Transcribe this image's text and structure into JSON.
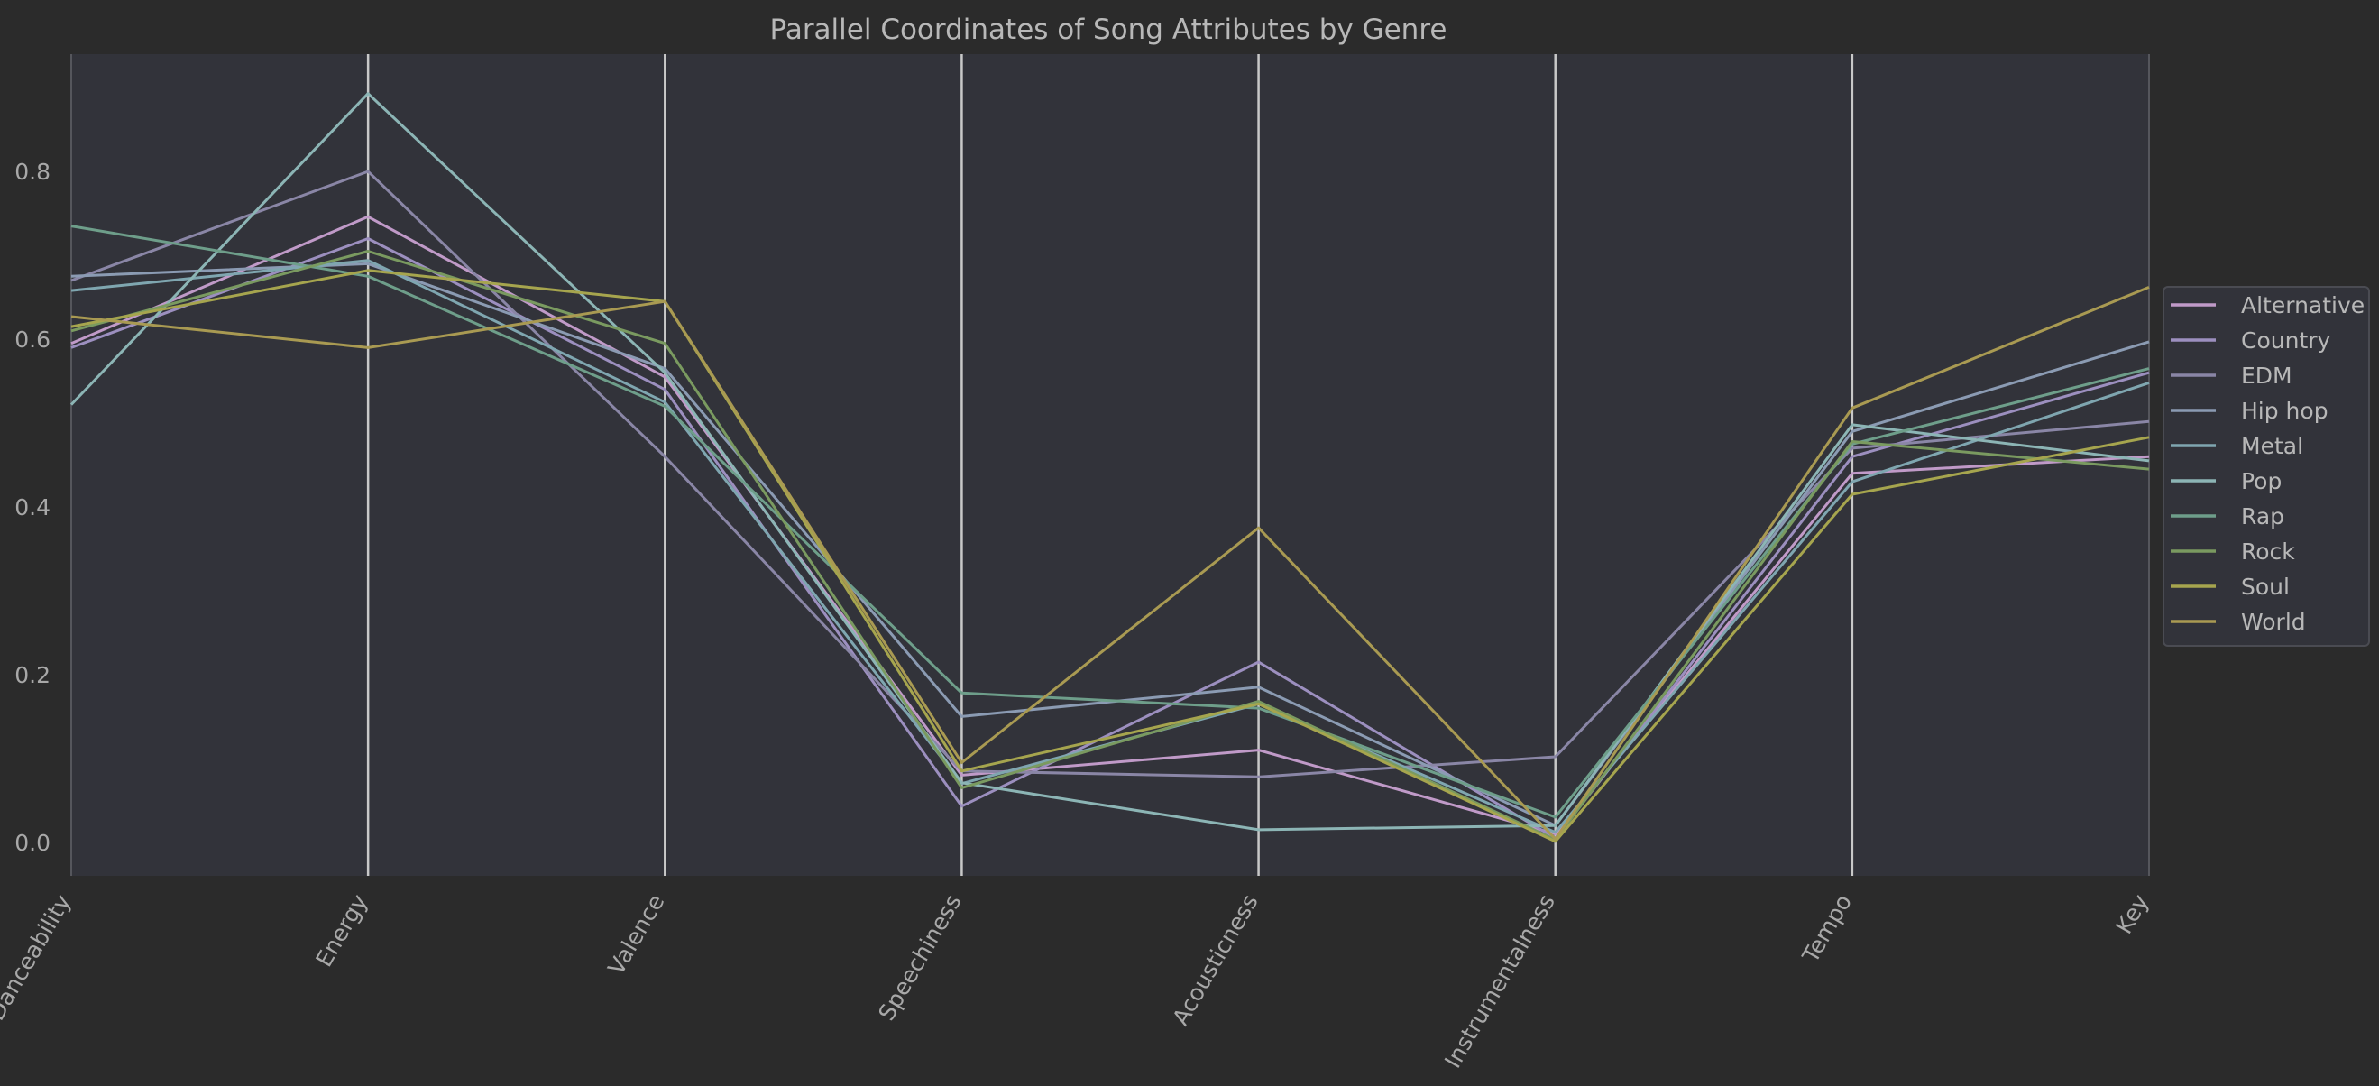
{
  "chart_data": {
    "type": "line",
    "title": "Parallel Coordinates of Song Attributes by Genre",
    "axes": [
      "Danceability",
      "Energy",
      "Valence",
      "Speechiness",
      "Acousticness",
      "Instrumentalness",
      "Tempo",
      "Key"
    ],
    "yticks": [
      "0.0",
      "0.2",
      "0.4",
      "0.6",
      "0.8"
    ],
    "ylim": [
      -0.04,
      0.94
    ],
    "grid": true,
    "legend_position": "right",
    "series": [
      {
        "name": "Alternative",
        "color": "#c09ac8",
        "values": [
          0.595,
          0.746,
          0.555,
          0.08,
          0.11,
          0.01,
          0.44,
          0.46
        ]
      },
      {
        "name": "Country",
        "color": "#9c8fbf",
        "values": [
          0.59,
          0.72,
          0.54,
          0.043,
          0.215,
          0.005,
          0.46,
          0.56
        ]
      },
      {
        "name": "EDM",
        "color": "#8a86a6",
        "values": [
          0.67,
          0.8,
          0.46,
          0.085,
          0.078,
          0.102,
          0.47,
          0.502
        ]
      },
      {
        "name": "Hip hop",
        "color": "#8b9bb3",
        "values": [
          0.675,
          0.69,
          0.565,
          0.15,
          0.185,
          0.02,
          0.49,
          0.597
        ]
      },
      {
        "name": "Metal",
        "color": "#7fa6b0",
        "values": [
          0.658,
          0.694,
          0.525,
          0.07,
          0.165,
          0.012,
          0.43,
          0.548
        ]
      },
      {
        "name": "Pop",
        "color": "#8cb5b5",
        "values": [
          0.522,
          0.893,
          0.56,
          0.071,
          0.015,
          0.02,
          0.498,
          0.455
        ]
      },
      {
        "name": "Rap",
        "color": "#6e9e8a",
        "values": [
          0.735,
          0.675,
          0.52,
          0.178,
          0.16,
          0.03,
          0.475,
          0.565
        ]
      },
      {
        "name": "Rock",
        "color": "#7a9a60",
        "values": [
          0.61,
          0.705,
          0.595,
          0.065,
          0.168,
          0.003,
          0.478,
          0.445
        ]
      },
      {
        "name": "Soul",
        "color": "#a6a54e",
        "values": [
          0.615,
          0.682,
          0.645,
          0.085,
          0.165,
          0.001,
          0.415,
          0.483
        ]
      },
      {
        "name": "World",
        "color": "#a99a52",
        "values": [
          0.627,
          0.59,
          0.645,
          0.095,
          0.375,
          0.004,
          0.518,
          0.662
        ]
      }
    ]
  }
}
